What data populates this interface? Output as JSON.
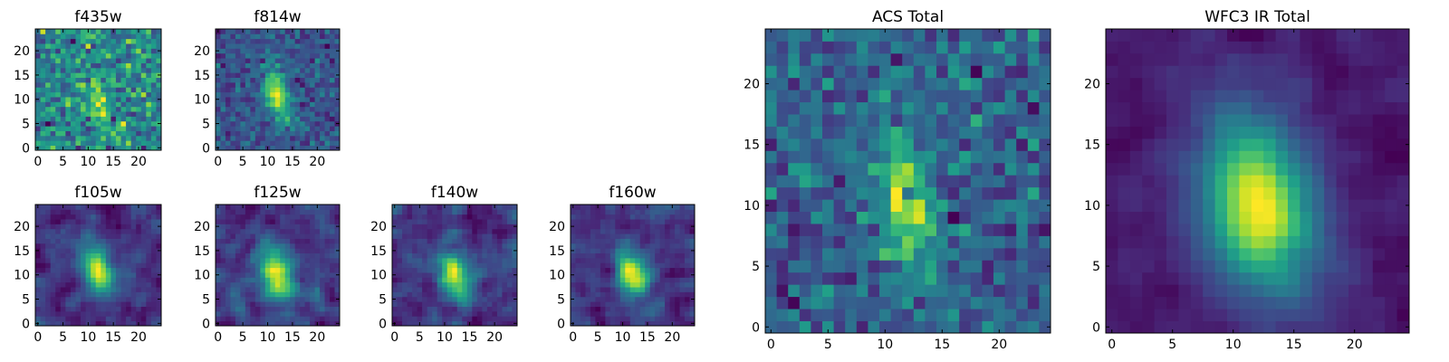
{
  "chart_data": {
    "type": "heatmap",
    "colormap": "viridis",
    "grid": false,
    "image_size": [
      25,
      25
    ],
    "xlim": [
      -0.5,
      24.5
    ],
    "ylim": [
      -0.5,
      24.5
    ],
    "xticks": [
      "0",
      "5",
      "10",
      "15",
      "20"
    ],
    "yticks": [
      "0",
      "5",
      "10",
      "15",
      "20"
    ],
    "panels": [
      {
        "title": "f435w",
        "source": {
          "center": [
            12,
            10
          ],
          "sigma": [
            1.6,
            4.0
          ],
          "angle_deg": -12,
          "amp": 0.45,
          "noise": 0.22,
          "smooth": 0,
          "background": 0.55,
          "seed": 11
        }
      },
      {
        "title": "f814w",
        "source": {
          "center": [
            12,
            11
          ],
          "sigma": [
            1.6,
            3.8
          ],
          "angle_deg": -14,
          "amp": 1.0,
          "noise": 0.14,
          "smooth": 0,
          "background": 0.3,
          "seed": 23
        }
      },
      {
        "title": "f105w",
        "source": {
          "center": [
            12,
            11
          ],
          "sigma": [
            2.0,
            3.6
          ],
          "angle_deg": -14,
          "amp": 1.0,
          "noise": 0.12,
          "smooth": 1,
          "background": 0.28,
          "seed": 37
        }
      },
      {
        "title": "f125w",
        "source": {
          "center": [
            12,
            10
          ],
          "sigma": [
            2.1,
            3.7
          ],
          "angle_deg": -16,
          "amp": 1.0,
          "noise": 0.13,
          "smooth": 1,
          "background": 0.3,
          "seed": 41
        }
      },
      {
        "title": "f140w",
        "source": {
          "center": [
            12,
            10
          ],
          "sigma": [
            2.1,
            3.6
          ],
          "angle_deg": -16,
          "amp": 1.0,
          "noise": 0.12,
          "smooth": 1,
          "background": 0.22,
          "seed": 53
        }
      },
      {
        "title": "f160w",
        "source": {
          "center": [
            12,
            10
          ],
          "sigma": [
            2.1,
            3.6
          ],
          "angle_deg": -16,
          "amp": 1.0,
          "noise": 0.12,
          "smooth": 1,
          "background": 0.18,
          "seed": 67
        }
      },
      {
        "title": "ACS Total",
        "source": {
          "center": [
            12,
            10
          ],
          "sigma": [
            1.5,
            4.2
          ],
          "angle_deg": -12,
          "amp": 0.75,
          "noise": 0.15,
          "smooth": 0,
          "background": 0.45,
          "seed": 79
        }
      },
      {
        "title": "WFC3 IR Total",
        "source": {
          "center": [
            12,
            10
          ],
          "sigma": [
            3.0,
            5.0
          ],
          "angle_deg": -14,
          "amp": 1.0,
          "noise": 0.05,
          "smooth": 1,
          "background": 0.2,
          "seed": 97
        }
      }
    ]
  }
}
